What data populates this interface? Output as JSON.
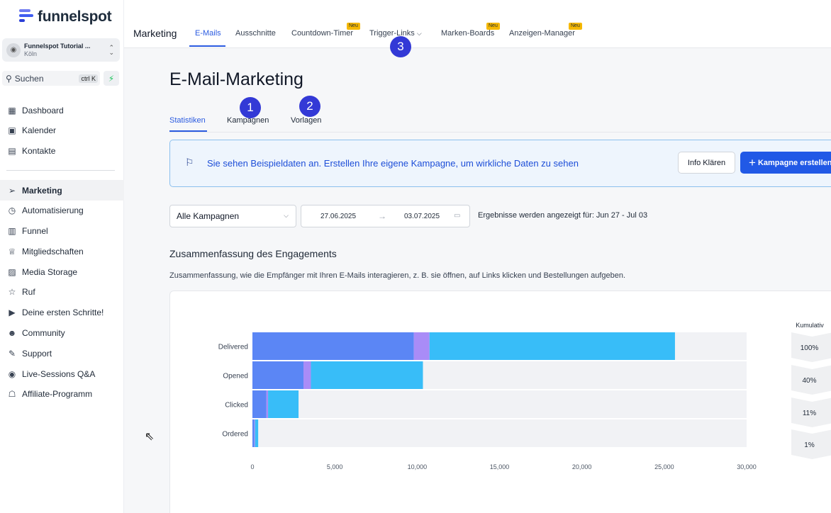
{
  "brand": {
    "name": "funnelspot"
  },
  "account": {
    "name": "Funnelspot Tutorial ...",
    "city": "Köln"
  },
  "search": {
    "label": "Suchen",
    "shortcut": "ctrl K"
  },
  "sidebar": {
    "items": [
      {
        "label": "Dashboard",
        "icon": "grid-icon",
        "glyph": "▦"
      },
      {
        "label": "Kalender",
        "icon": "calendar-icon",
        "glyph": "▣"
      },
      {
        "label": "Kontakte",
        "icon": "contacts-icon",
        "glyph": "▤"
      },
      {
        "label": "Marketing",
        "icon": "send-icon",
        "glyph": "➢",
        "active": true
      },
      {
        "label": "Automatisierung",
        "icon": "automation-icon",
        "glyph": "◷"
      },
      {
        "label": "Funnel",
        "icon": "funnel-icon",
        "glyph": "▥"
      },
      {
        "label": "Mitgliedschaften",
        "icon": "award-icon",
        "glyph": "♕"
      },
      {
        "label": "Media Storage",
        "icon": "image-icon",
        "glyph": "▨"
      },
      {
        "label": "Ruf",
        "icon": "star-icon",
        "glyph": "☆"
      },
      {
        "label": "Deine ersten Schritte!",
        "icon": "play-icon",
        "glyph": "▶"
      },
      {
        "label": "Community",
        "icon": "users-icon",
        "glyph": "☻"
      },
      {
        "label": "Support",
        "icon": "wrench-icon",
        "glyph": "✎"
      },
      {
        "label": "Live-Sessions Q&A",
        "icon": "chat-icon",
        "glyph": "◉"
      },
      {
        "label": "Affiliate-Programm",
        "icon": "hand-coin-icon",
        "glyph": "☖"
      }
    ]
  },
  "topbar": {
    "title": "Marketing",
    "tabs": [
      {
        "label": "E-Mails",
        "active": true
      },
      {
        "label": "Ausschnitte"
      },
      {
        "label": "Countdown-Timer",
        "badge": "Neu"
      },
      {
        "label": "Trigger-Links",
        "dropdown": true
      },
      {
        "label": "Marken-Boards",
        "badge": "Neu"
      },
      {
        "label": "Anzeigen-Manager",
        "badge": "Neu"
      }
    ]
  },
  "markers": [
    "1",
    "2",
    "3"
  ],
  "page": {
    "title": "E-Mail-Marketing",
    "subtabs": [
      "Statistiken",
      "Kampagnen",
      "Vorlagen"
    ]
  },
  "banner": {
    "text": "Sie sehen Beispieldaten an. Erstellen Ihre eigene Kampagne, um wirkliche Daten zu sehen",
    "info_button": "Info Klären",
    "primary_button": "Kampagne erstellen"
  },
  "filters": {
    "campaign": "Alle Kampagnen",
    "date_start": "27.06.2025",
    "date_end": "03.07.2025",
    "result_text": "Ergebnisse werden angezeigt für: Jun 27 - Jul 03"
  },
  "engagement": {
    "title": "Zusammenfassung des Engagements",
    "description": "Zusammenfassung, wie die Empfänger mit Ihren E-Mails interagieren, z. B. sie öffnen, auf Links klicken und Bestellungen aufgeben."
  },
  "chart_data": {
    "type": "bar",
    "orientation": "horizontal",
    "stacked": true,
    "categories": [
      "Delivered",
      "Opened",
      "Clicked",
      "Ordered"
    ],
    "series": [
      {
        "values": [
          9800,
          3100,
          850,
          120
        ],
        "color": "#5b86f5"
      },
      {
        "values": [
          950,
          450,
          100,
          40
        ],
        "color": "#a98cf7"
      },
      {
        "values": [
          14900,
          6800,
          1850,
          190
        ],
        "color": "#38bdf8"
      }
    ],
    "xlim": [
      0,
      30000
    ],
    "xticks": [
      "0",
      "5,000",
      "10,000",
      "15,000",
      "20,000",
      "25,000",
      "30,000"
    ],
    "xtick_values": [
      0,
      5000,
      10000,
      15000,
      20000,
      25000,
      30000
    ],
    "cumulative_label": "Kumulativ",
    "cumulative": [
      "100%",
      "40%",
      "11%",
      "1%"
    ],
    "colors": {
      "track": "#f1f2f5",
      "chevron": "#eff0f2"
    }
  }
}
